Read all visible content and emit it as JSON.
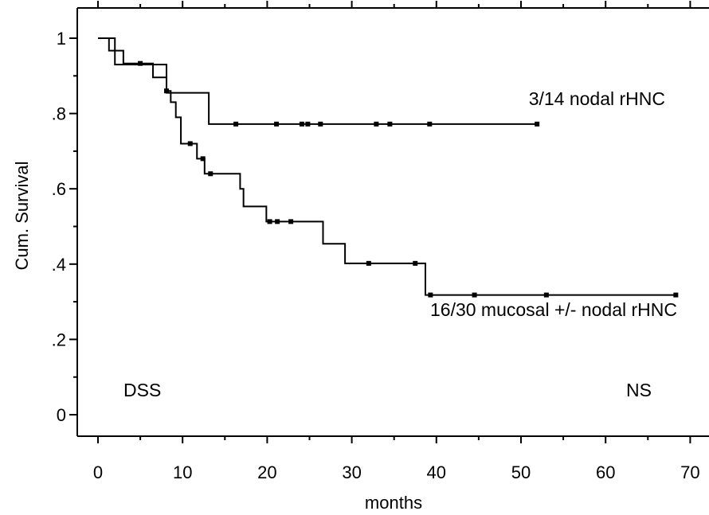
{
  "chart_data": {
    "type": "line",
    "title": "",
    "xlabel": "months",
    "ylabel": "Cum. Survival",
    "xlim": [
      -2.5,
      72.5
    ],
    "ylim": [
      -0.06,
      1.07
    ],
    "x_ticks": [
      0,
      10,
      20,
      30,
      40,
      50,
      60,
      70
    ],
    "x_tick_labels": [
      "0",
      "10",
      "20",
      "30",
      "40",
      "50",
      "60",
      "70"
    ],
    "y_ticks": [
      0,
      0.2,
      0.4,
      0.6,
      0.8,
      1.0
    ],
    "y_tick_labels": [
      "0",
      ".2",
      ".4",
      ".6",
      ".8",
      "1"
    ],
    "grid": false,
    "annotations": {
      "left_corner": "DSS",
      "right_corner": "NS"
    },
    "series": [
      {
        "name": "3/14 nodal rHNC",
        "steps": [
          [
            0,
            1.0
          ],
          [
            2.0,
            0.93
          ],
          [
            8.1,
            0.855
          ],
          [
            13.1,
            0.772
          ],
          [
            51.9,
            0.772
          ]
        ],
        "censored_x": [
          16.3,
          21.1,
          24.1,
          24.8,
          26.3,
          32.9,
          34.5,
          39.2,
          51.9
        ]
      },
      {
        "name": "16/30 mucosal +/- nodal rHNC",
        "steps": [
          [
            0,
            1.0
          ],
          [
            1.3,
            0.967
          ],
          [
            3.0,
            0.933
          ],
          [
            6.5,
            0.896
          ],
          [
            8.1,
            0.86
          ],
          [
            8.6,
            0.83
          ],
          [
            9.2,
            0.79
          ],
          [
            9.8,
            0.72
          ],
          [
            11.7,
            0.68
          ],
          [
            12.6,
            0.64
          ],
          [
            16.8,
            0.6
          ],
          [
            17.2,
            0.553
          ],
          [
            19.9,
            0.513
          ],
          [
            26.6,
            0.454
          ],
          [
            29.2,
            0.402
          ],
          [
            38.7,
            0.318
          ],
          [
            68.3,
            0.318
          ]
        ],
        "censored_x": [
          5.0,
          8.1,
          10.9,
          12.4,
          13.3,
          20.3,
          21.2,
          22.8,
          32.0,
          37.5,
          39.3,
          44.5,
          53.0,
          68.3
        ]
      }
    ]
  }
}
